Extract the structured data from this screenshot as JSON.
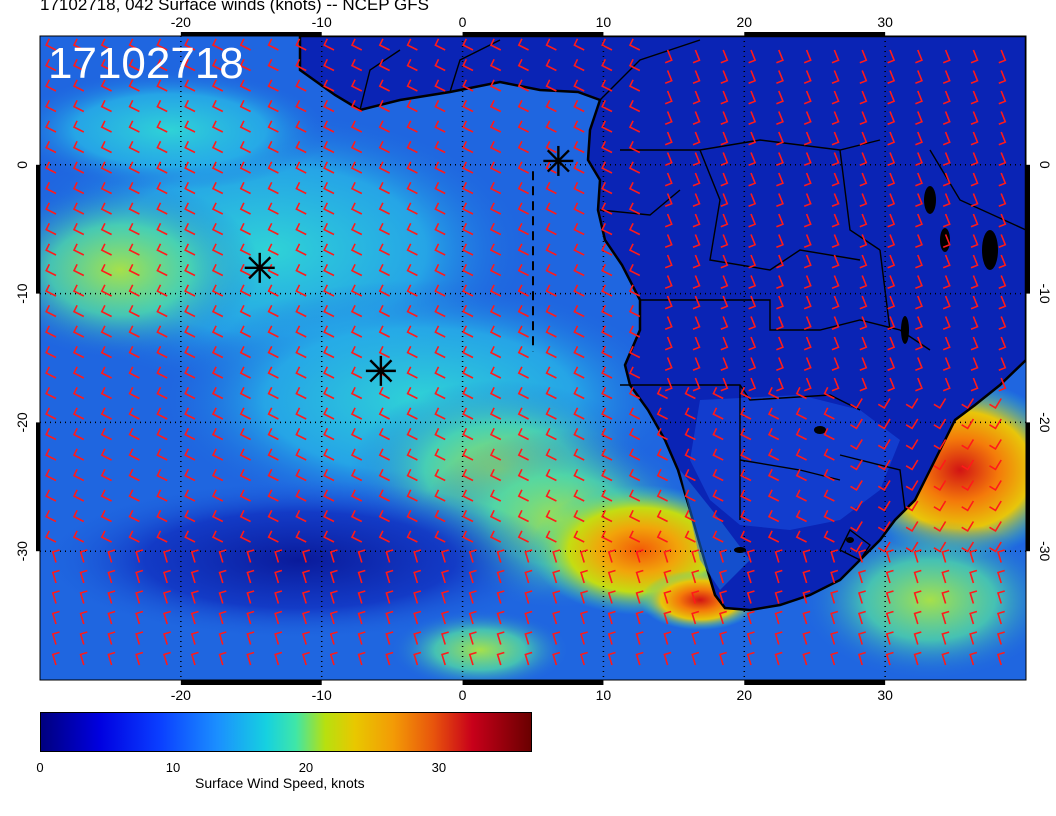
{
  "title": "17102718, 042 Surface winds (knots) -- NCEP GFS",
  "map": {
    "stamp": "17102718",
    "top_lon_ticks": [
      "-20",
      "-10",
      "0",
      "10",
      "20",
      "30"
    ],
    "bottom_lon_ticks": [
      "-20",
      "-10",
      "0",
      "10",
      "20",
      "30"
    ],
    "left_lat_ticks": [
      "0",
      "-10",
      "-20",
      "-30"
    ],
    "right_lat_ticks": [
      "0",
      "-10",
      "-20",
      "-30"
    ],
    "lon_values": [
      -20,
      -10,
      0,
      10,
      20,
      30
    ],
    "lat_values": [
      0,
      -10,
      -20,
      -30
    ],
    "lon_range": [
      -30,
      40
    ],
    "lat_range": [
      -40,
      10
    ],
    "markers": [
      {
        "lon": 6.8,
        "lat": 0.3
      },
      {
        "lon": -14.4,
        "lat": -8.0
      },
      {
        "lon": -5.8,
        "lat": -16.0
      }
    ],
    "dashed_line": {
      "lon": 5.0,
      "lat_from": -0.5,
      "lat_to": -14.5
    },
    "barb_color": "#ff1a1a",
    "ocean_color": "#1f66e0",
    "land_color": "#0a24b5"
  },
  "colorbar": {
    "ticks": [
      "0",
      "10",
      "20",
      "30"
    ],
    "tick_values": [
      0,
      10,
      20,
      30
    ],
    "range": [
      0,
      37
    ],
    "label": "Surface Wind Speed, knots"
  }
}
